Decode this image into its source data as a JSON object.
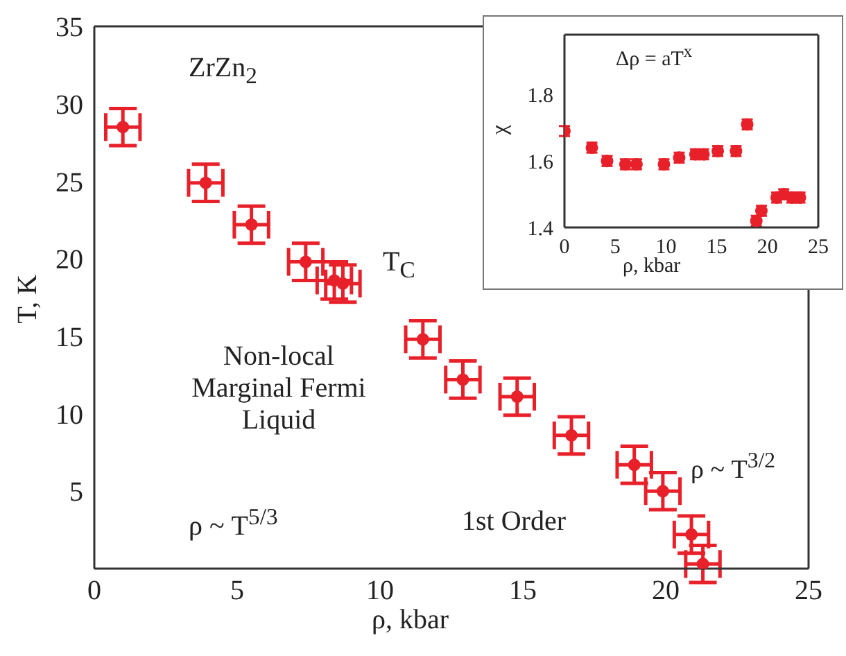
{
  "chart_data": [
    {
      "type": "scatter",
      "xlabel": "ρ, kbar",
      "ylabel": "T, K",
      "xlim": [
        0,
        25
      ],
      "ylim": [
        0,
        35
      ],
      "xticks": [
        0,
        5,
        10,
        15,
        20,
        25
      ],
      "yticks": [
        5,
        10,
        15,
        20,
        25,
        30,
        35
      ],
      "marker": "circle",
      "annotations": [
        "ZrZn$_{2}$",
        "T$_{C}$",
        "Non-local\nMarginal Fermi\nLiquid",
        "ρ ~ T$^{5/3}$",
        "1st Order",
        "ρ ~ T$^{3/2}$"
      ],
      "series": [
        {
          "color": "#e8202a",
          "x": [
            1.0,
            3.9,
            5.5,
            7.4,
            8.4,
            8.7,
            11.5,
            12.9,
            14.8,
            16.7,
            18.9,
            19.9,
            20.9,
            21.3
          ],
          "values": [
            28.5,
            24.9,
            22.2,
            19.8,
            18.6,
            18.4,
            14.8,
            12.2,
            11.1,
            8.6,
            6.7,
            5.0,
            2.2,
            0.3
          ],
          "errors": [
            1.2,
            1.2,
            1.2,
            1.2,
            1.2,
            1.2,
            1.2,
            1.2,
            1.2,
            1.2,
            1.2,
            1.2,
            1.2,
            1.2
          ],
          "xerrors": [
            0.6,
            0.6,
            0.6,
            0.6,
            0.6,
            0.6,
            0.6,
            0.6,
            0.6,
            0.6,
            0.6,
            0.6,
            0.6,
            0.6
          ]
        }
      ]
    },
    {
      "type": "scatter",
      "xlabel": "ρ, kbar",
      "ylabel": "χ",
      "xlim": [
        0,
        25
      ],
      "ylim": [
        1.4,
        1.98
      ],
      "xticks": [
        0,
        5,
        10,
        15,
        20,
        25
      ],
      "yticks": [
        1.4,
        1.6,
        1.8
      ],
      "marker": "circle",
      "annotations": [
        "Δρ = aT$^{x}$"
      ],
      "series": [
        {
          "color": "#e8202a",
          "x": [
            0,
            2.7,
            4.2,
            6.0,
            7.1,
            9.8,
            11.3,
            12.9,
            13.7,
            15.1,
            16.9,
            18.0,
            18.9,
            19.4,
            20.9,
            21.6,
            22.4,
            23.2
          ],
          "values": [
            1.69,
            1.64,
            1.6,
            1.59,
            1.59,
            1.59,
            1.61,
            1.62,
            1.62,
            1.63,
            1.63,
            1.71,
            1.42,
            1.45,
            1.49,
            1.5,
            1.49,
            1.49
          ],
          "errors": [
            0.015,
            0.015,
            0.015,
            0.015,
            0.015,
            0.015,
            0.015,
            0.015,
            0.015,
            0.015,
            0.015,
            0.015,
            0.015,
            0.015,
            0.015,
            0.015,
            0.015,
            0.015
          ]
        }
      ]
    }
  ]
}
